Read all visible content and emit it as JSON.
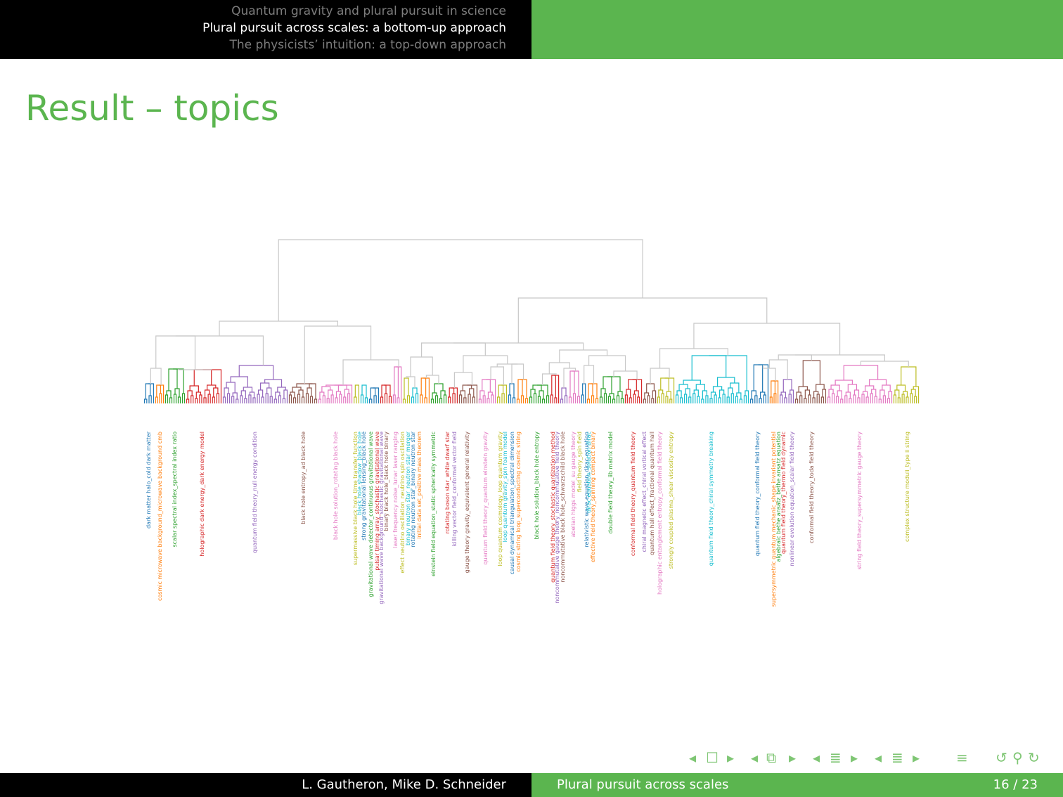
{
  "header": {
    "sections": [
      {
        "label": "Quantum gravity and plural pursuit in science",
        "active": false
      },
      {
        "label": "Plural pursuit across scales: a bottom-up approach",
        "active": true
      },
      {
        "label": "The physicists’ intuition: a top-down approach",
        "active": false
      }
    ]
  },
  "slide": {
    "title": "Result – topics"
  },
  "dendrogram": {
    "colors": {
      "link": "#c8c8c8",
      "blue": "#1f77b4",
      "orange": "#ff7f0e",
      "green": "#2ca02c",
      "red": "#d62728",
      "purple": "#9467bd",
      "brown": "#8c564b",
      "pink": "#e377c2",
      "gray": "#7f7f7f",
      "olive": "#bcbd22",
      "cyan": "#17becf"
    },
    "labels": [
      {
        "text": "dark matter halo_cold dark matter",
        "color": "#1f77b4"
      },
      {
        "text": "cosmic microwave background_microwave background cmb",
        "color": "#ff7f0e"
      },
      {
        "text": "scalar spectral index_spectral index ratio",
        "color": "#2ca02c"
      },
      {
        "text": "holographic dark energy_dark energy model",
        "color": "#d62728"
      },
      {
        "text": "quantum field theory_null energy condition",
        "color": "#9467bd"
      },
      {
        "text": "black hole entropy_ad black hole",
        "color": "#8c564b"
      },
      {
        "text": "black hole solution_rotating black hole",
        "color": "#e377c2"
      },
      {
        "text": "supermassive black hole_time transfer function",
        "color": "#bcbd22"
      },
      {
        "text": "black hole shadow_black hole",
        "color": "#17becf"
      },
      {
        "text": "strong gravitational lensing_black hole",
        "color": "#1f77b4"
      },
      {
        "text": "gravitational wave detector_continuous gravitational wave",
        "color": "#2ca02c"
      },
      {
        "text": "pulsar timing array_stochastic gravitational wave",
        "color": "#d62728"
      },
      {
        "text": "gravitational wave background_stochastic gravitational wave",
        "color": "#9467bd"
      },
      {
        "text": "binary black hole_black hole binary",
        "color": "#8c564b"
      },
      {
        "text": "laser frequency noise_lunar laser ranging",
        "color": "#e377c2"
      },
      {
        "text": "effect neutrino oscillation_neutrino spin oscillation",
        "color": "#bcbd22"
      },
      {
        "text": "binary neutron star_neutron star merger",
        "color": "#17becf"
      },
      {
        "text": "rotating neutron star_binary neutron star",
        "color": "#1f77b4"
      },
      {
        "text": "initial data set_positive mass theorem",
        "color": "#ff7f0e"
      },
      {
        "text": "einstein field equation_static spherically symmetric",
        "color": "#2ca02c"
      },
      {
        "text": "rotating boson star_white dwarf star",
        "color": "#d62728"
      },
      {
        "text": "killing vector field_conformal vector field",
        "color": "#9467bd"
      },
      {
        "text": "gauge theory gravity_equivalent general relativity",
        "color": "#8c564b"
      },
      {
        "text": "quantum field theory_quantum einstein gravity",
        "color": "#e377c2"
      },
      {
        "text": "loop quantum cosmology_loop quantum gravity",
        "color": "#bcbd22"
      },
      {
        "text": "loop quantum gravity_spin foam model",
        "color": "#17becf"
      },
      {
        "text": "causal dynamical triangulation_spectral dimension",
        "color": "#1f77b4"
      },
      {
        "text": "cosmic string loop_superconducting cosmic string",
        "color": "#ff7f0e"
      },
      {
        "text": "black hole solution_black hole entropy",
        "color": "#2ca02c"
      },
      {
        "text": "quantum field theory_stochastic quantization method",
        "color": "#d62728"
      },
      {
        "text": "noncommutative gauge theory_noncommutative field theory",
        "color": "#9467bd"
      },
      {
        "text": "noncommutative black hole_schwarzschild black hole",
        "color": "#8c564b"
      },
      {
        "text": "abelian higgs model_su gauge theory",
        "color": "#e377c2"
      },
      {
        "text": "field theory_spin field",
        "color": "#bcbd22"
      },
      {
        "text": "relativistic wave equation_dirac equation",
        "color": "#1f77b4"
      },
      {
        "text": "dirac equation_solution dirac",
        "color": "#17becf"
      },
      {
        "text": "effective field theory_spinning compact binary",
        "color": "#ff7f0e"
      },
      {
        "text": "double field theory_iib matrix model",
        "color": "#2ca02c"
      },
      {
        "text": "conformal field theory_quantum field theory",
        "color": "#d62728"
      },
      {
        "text": "chiral magnetic effect_chiral vortical effect",
        "color": "#9467bd"
      },
      {
        "text": "quantum hall effect_fractional quantum hall",
        "color": "#8c564b"
      },
      {
        "text": "holographic entanglement entropy_conformal field theory",
        "color": "#e377c2"
      },
      {
        "text": "strongly coupled plasma_shear viscosity entropy",
        "color": "#bcbd22"
      },
      {
        "text": "quantum field theory_chiral symmetry breaking",
        "color": "#17becf"
      },
      {
        "text": "quantum field theory_conformal field theory",
        "color": "#1f77b4"
      },
      {
        "text": "supersymmetric quantum mechanic_shape invariant potential",
        "color": "#ff7f0e"
      },
      {
        "text": "algebraic bethe ansatz_bethe ansatz equation",
        "color": "#2ca02c"
      },
      {
        "text": "quantum field theory_thermo field dynamic",
        "color": "#d62728"
      },
      {
        "text": "nonlinear evolution equation_scalar field theory",
        "color": "#9467bd"
      },
      {
        "text": "conformal field theory_toda field theory",
        "color": "#8c564b"
      },
      {
        "text": "string field theory_supersymmetric gauge theory",
        "color": "#e377c2"
      },
      {
        "text": "complex structure moduli_type ii string",
        "color": "#bcbd22"
      }
    ]
  },
  "footer": {
    "authors": "L. Gautheron, Mike D. Schneider",
    "short_title": "Plural pursuit across scales",
    "page": "16 / 23"
  },
  "nav_icons": [
    "frame-left-icon",
    "frame-box-icon",
    "frame-right-icon",
    "subsection-left-icon",
    "subsection-icon",
    "subsection-right-icon",
    "section-left-icon",
    "section-icon",
    "section-right-icon",
    "list-icon",
    "search-icon"
  ]
}
